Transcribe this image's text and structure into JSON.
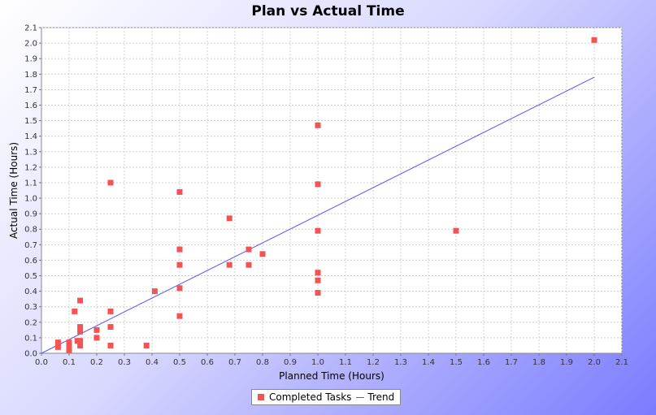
{
  "chart_data": {
    "type": "scatter",
    "title": "Plan vs Actual Time",
    "xlabel": "Planned Time (Hours)",
    "ylabel": "Actual Time (Hours)",
    "xlim": [
      0,
      2.1
    ],
    "ylim": [
      0,
      2.1
    ],
    "xticks": [
      "0.0",
      "0.1",
      "0.2",
      "0.3",
      "0.4",
      "0.5",
      "0.6",
      "0.7",
      "0.8",
      "0.9",
      "1.0",
      "1.1",
      "1.2",
      "1.3",
      "1.4",
      "1.5",
      "1.6",
      "1.7",
      "1.8",
      "1.9",
      "2.0",
      "2.1"
    ],
    "yticks": [
      "0.0",
      "0.1",
      "0.2",
      "0.3",
      "0.4",
      "0.5",
      "0.6",
      "0.7",
      "0.8",
      "0.9",
      "1.0",
      "1.1",
      "1.2",
      "1.3",
      "1.4",
      "1.5",
      "1.6",
      "1.7",
      "1.8",
      "1.9",
      "2.0",
      "2.1"
    ],
    "grid": true,
    "legend_position": "bottom",
    "series": [
      {
        "name": "Completed Tasks",
        "color": "#f55353",
        "points": [
          [
            0.06,
            0.07
          ],
          [
            0.06,
            0.04
          ],
          [
            0.1,
            0.07
          ],
          [
            0.1,
            0.05
          ],
          [
            0.1,
            0.03
          ],
          [
            0.1,
            0.02
          ],
          [
            0.12,
            0.27
          ],
          [
            0.13,
            0.08
          ],
          [
            0.14,
            0.34
          ],
          [
            0.14,
            0.17
          ],
          [
            0.14,
            0.14
          ],
          [
            0.14,
            0.08
          ],
          [
            0.14,
            0.05
          ],
          [
            0.2,
            0.15
          ],
          [
            0.2,
            0.1
          ],
          [
            0.25,
            1.1
          ],
          [
            0.25,
            0.27
          ],
          [
            0.25,
            0.17
          ],
          [
            0.25,
            0.05
          ],
          [
            0.38,
            0.05
          ],
          [
            0.41,
            0.4
          ],
          [
            0.5,
            1.04
          ],
          [
            0.5,
            0.67
          ],
          [
            0.5,
            0.57
          ],
          [
            0.5,
            0.42
          ],
          [
            0.5,
            0.24
          ],
          [
            0.68,
            0.87
          ],
          [
            0.68,
            0.57
          ],
          [
            0.75,
            0.67
          ],
          [
            0.75,
            0.57
          ],
          [
            0.8,
            0.64
          ],
          [
            1.0,
            1.47
          ],
          [
            1.0,
            1.09
          ],
          [
            1.0,
            0.79
          ],
          [
            1.0,
            0.52
          ],
          [
            1.0,
            0.47
          ],
          [
            1.0,
            0.39
          ],
          [
            1.5,
            0.79
          ],
          [
            2.0,
            2.02
          ]
        ]
      },
      {
        "name": "Trend",
        "color": "#5555ff",
        "line": [
          [
            0.0,
            0.0
          ],
          [
            2.0,
            1.78
          ]
        ]
      }
    ]
  }
}
